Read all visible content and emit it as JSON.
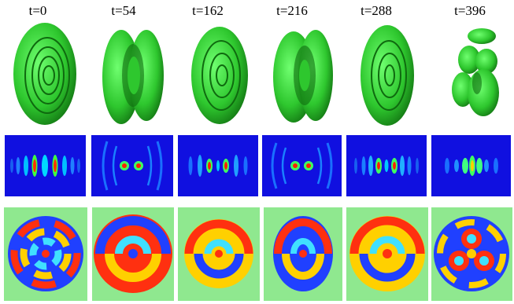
{
  "panels": [
    {
      "time_label": "t=0",
      "isosurface": "torus-rings",
      "density_lobes": 8,
      "phase_pattern": "concentric-rings"
    },
    {
      "time_label": "t=54",
      "isosurface": "split-torus",
      "density_lobes": 2,
      "phase_pattern": "spiral"
    },
    {
      "time_label": "t=162",
      "isosurface": "torus-rings",
      "density_lobes": 4,
      "phase_pattern": "spiral"
    },
    {
      "time_label": "t=216",
      "isosurface": "split-torus",
      "density_lobes": 2,
      "phase_pattern": "spiral"
    },
    {
      "time_label": "t=288",
      "isosurface": "torus-rings",
      "density_lobes": 6,
      "phase_pattern": "spiral"
    },
    {
      "time_label": "t=396",
      "isosurface": "fragmented",
      "density_lobes": 3,
      "phase_pattern": "trefoil"
    }
  ],
  "colors": {
    "isosurface": "#2ec72e",
    "density_bg": "#1010e0",
    "phase_bg": "#8fe88f"
  }
}
